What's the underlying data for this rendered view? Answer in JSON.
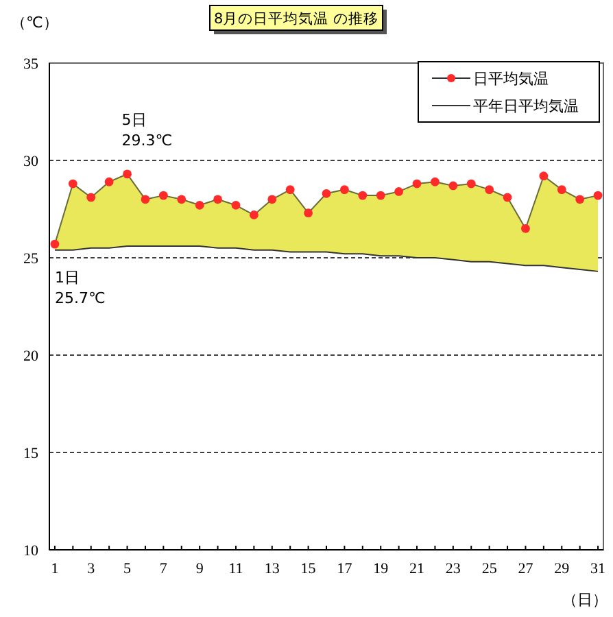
{
  "chart_data": {
    "type": "line",
    "title": "8月の日平均気温 の推移",
    "xlabel": "（日）",
    "ylabel": "（℃）",
    "x": [
      1,
      2,
      3,
      4,
      5,
      6,
      7,
      8,
      9,
      10,
      11,
      12,
      13,
      14,
      15,
      16,
      17,
      18,
      19,
      20,
      21,
      22,
      23,
      24,
      25,
      26,
      27,
      28,
      29,
      30,
      31
    ],
    "xlim": [
      0.7,
      31.3
    ],
    "xticks": [
      1,
      {
        "value": 2,
        "label": null
      },
      3,
      {
        "value": 4,
        "label": null
      },
      5,
      {
        "value": 6,
        "label": null
      },
      7,
      {
        "value": 8,
        "label": null
      },
      9,
      {
        "value": 10,
        "label": null
      },
      11,
      {
        "value": 12,
        "label": null
      },
      13,
      {
        "value": 14,
        "label": null
      },
      15,
      {
        "value": 16,
        "label": null
      },
      17,
      {
        "value": 18,
        "label": null
      },
      19,
      {
        "value": 20,
        "label": null
      },
      21,
      {
        "value": 22,
        "label": null
      },
      23,
      {
        "value": 24,
        "label": null
      },
      25,
      {
        "value": 26,
        "label": null
      },
      27,
      {
        "value": 28,
        "label": null
      },
      29,
      {
        "value": 30,
        "label": null
      },
      31
    ],
    "ylim": [
      10,
      35
    ],
    "yticks": [
      10,
      15,
      20,
      25,
      30,
      35
    ],
    "grid": "y",
    "legend": "top right",
    "series": [
      {
        "name": "日平均気温",
        "type": "area",
        "color": "#ff2a2a",
        "marker": "circle",
        "values": [
          25.7,
          28.8,
          28.1,
          28.9,
          29.3,
          28.0,
          28.2,
          28.0,
          27.7,
          28.0,
          27.7,
          27.2,
          28.0,
          28.5,
          27.3,
          28.3,
          28.5,
          28.2,
          28.2,
          28.4,
          28.8,
          28.9,
          28.7,
          28.8,
          28.5,
          28.1,
          26.5,
          29.2,
          28.5,
          28.0,
          28.2
        ]
      },
      {
        "name": "平年日平均気温",
        "color": "#333333",
        "marker": "none",
        "values": [
          25.4,
          25.4,
          25.5,
          25.5,
          25.6,
          25.6,
          25.6,
          25.6,
          25.6,
          25.5,
          25.5,
          25.4,
          25.4,
          25.3,
          25.3,
          25.3,
          25.2,
          25.2,
          25.1,
          25.1,
          25.0,
          25.0,
          24.9,
          24.8,
          24.8,
          24.7,
          24.6,
          24.6,
          24.5,
          24.4,
          24.3
        ]
      }
    ],
    "annotations": [
      {
        "text": "5日\n29.3℃",
        "x": 5,
        "y": 29.3
      },
      {
        "text": "1日\n25.7℃",
        "x": 1,
        "y": 25.7
      }
    ]
  }
}
